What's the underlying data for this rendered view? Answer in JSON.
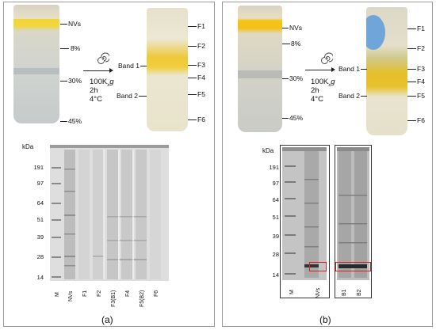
{
  "panel_a": {
    "label": "(a)",
    "gradient": {
      "layers": [
        "NVs",
        "8%",
        "30%",
        "45%"
      ],
      "centrifuge": {
        "speed": "100K",
        "speed_suffix_x": "x",
        "speed_suffix_g": "g",
        "time": "2h",
        "temp": "4°C"
      },
      "bands": [
        "Band 1",
        "Band 2"
      ],
      "fractions": [
        "F1",
        "F2",
        "F3",
        "F4",
        "F5",
        "F6"
      ]
    },
    "gel": {
      "unit": "kDa",
      "markers": [
        "191",
        "97",
        "64",
        "51",
        "39",
        "28",
        "14"
      ],
      "lanes": [
        "M",
        "NVs",
        "F1",
        "F2",
        "F3(B1)",
        "F4",
        "F5(B2)",
        "F6"
      ]
    }
  },
  "panel_b": {
    "label": "(b)",
    "gradient": {
      "layers": [
        "NVs",
        "8%",
        "30%",
        "45%"
      ],
      "centrifuge": {
        "speed": "100K",
        "speed_suffix_x": "x",
        "speed_suffix_g": "g",
        "time": "2h",
        "temp": "4°C"
      },
      "bands": [
        "Band 1",
        "Band 2"
      ],
      "fractions": [
        "F1",
        "F2",
        "F3",
        "F4",
        "F5",
        "F6"
      ]
    },
    "gel": {
      "unit": "kDa",
      "markers": [
        "191",
        "97",
        "64",
        "51",
        "39",
        "28",
        "14"
      ],
      "lanes": [
        "M",
        "NVs",
        "B1",
        "B2"
      ]
    }
  },
  "colors": {
    "highlight_box": "#d21f26",
    "yellow_band": "#f3c51a",
    "gel_bg": "#dcdcdc",
    "gel_dark_bg": "#b7b7b7"
  }
}
